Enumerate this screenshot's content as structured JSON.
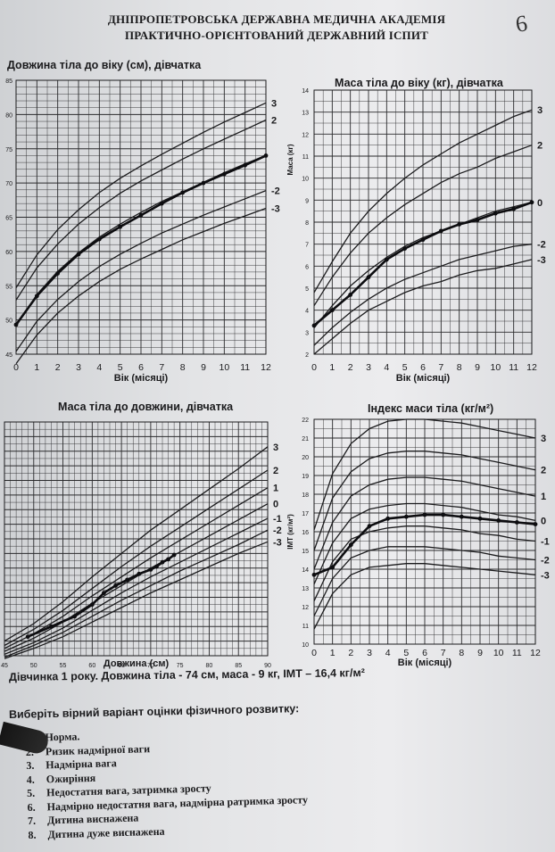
{
  "page": {
    "number": "6",
    "header_line1": "ДНІПРОПЕТРОВСЬКА ДЕРЖАВНА МЕДИЧНА АКАДЕМІЯ",
    "header_line2": "ПРАКТИЧНО-ОРІЄНТОВАНИЙ ДЕРЖАВНИЙ ІСПИТ"
  },
  "colors": {
    "paper": "#e6e7e9",
    "ink": "#1b1b1d",
    "grid": "#2a2a2c"
  },
  "chart_data": [
    {
      "type": "line",
      "title": "Довжина тіла до віку (см),  дівчатка",
      "xlabel": "Вік (місяці)",
      "ylabel": "",
      "x": [
        0,
        1,
        2,
        3,
        4,
        5,
        6,
        7,
        8,
        9,
        10,
        11,
        12
      ],
      "xlim": [
        0,
        12
      ],
      "ylim": [
        45,
        85
      ],
      "y_ticks": [
        45,
        50,
        55,
        60,
        65,
        70,
        75,
        80,
        85
      ],
      "grid": true,
      "series": [
        {
          "name": "3",
          "values": [
            54.7,
            59.5,
            63.2,
            66.1,
            68.6,
            70.7,
            72.5,
            74.2,
            75.8,
            77.4,
            78.9,
            80.3,
            81.7
          ]
        },
        {
          "name": "2",
          "values": [
            52.9,
            57.6,
            61.1,
            64.0,
            66.4,
            68.5,
            70.3,
            71.9,
            73.5,
            75.0,
            76.4,
            77.8,
            79.2
          ]
        },
        {
          "name": "",
          "values": [
            49.1,
            53.7,
            57.1,
            59.8,
            62.1,
            64.0,
            65.7,
            67.3,
            68.7,
            70.1,
            71.5,
            72.8,
            74.0
          ]
        },
        {
          "name": "-2",
          "values": [
            45.4,
            49.8,
            53.0,
            55.6,
            57.8,
            59.6,
            61.2,
            62.7,
            64.0,
            65.3,
            66.5,
            67.7,
            68.9
          ]
        },
        {
          "name": "-3",
          "values": [
            43.6,
            47.8,
            51.0,
            53.5,
            55.6,
            57.4,
            58.9,
            60.3,
            61.7,
            62.9,
            64.1,
            65.2,
            66.3
          ]
        }
      ],
      "patient": {
        "x": [
          0,
          1,
          2,
          3,
          4,
          5,
          6,
          7,
          8,
          9,
          10,
          11,
          12
        ],
        "y": [
          49.3,
          53.5,
          56.8,
          59.6,
          61.8,
          63.6,
          65.3,
          67.0,
          68.6,
          70.0,
          71.3,
          72.6,
          74.0
        ]
      }
    },
    {
      "type": "line",
      "title": "Маса тіла до віку (кг), дівчатка",
      "xlabel": "Вік (місяці)",
      "ylabel": "Маса (кг)",
      "x": [
        0,
        1,
        2,
        3,
        4,
        5,
        6,
        7,
        8,
        9,
        10,
        11,
        12
      ],
      "xlim": [
        0,
        12
      ],
      "ylim": [
        2,
        14
      ],
      "y_ticks": [
        2,
        3,
        4,
        5,
        6,
        7,
        8,
        9,
        10,
        11,
        12,
        13,
        14
      ],
      "grid": true,
      "series": [
        {
          "name": "3",
          "values": [
            4.8,
            6.2,
            7.5,
            8.5,
            9.3,
            10.0,
            10.6,
            11.1,
            11.6,
            12.0,
            12.4,
            12.8,
            13.1
          ]
        },
        {
          "name": "2",
          "values": [
            4.2,
            5.5,
            6.6,
            7.5,
            8.2,
            8.8,
            9.3,
            9.8,
            10.2,
            10.5,
            10.9,
            11.2,
            11.5
          ]
        },
        {
          "name": "0",
          "values": [
            3.2,
            4.2,
            5.1,
            5.8,
            6.4,
            6.9,
            7.3,
            7.6,
            7.9,
            8.2,
            8.5,
            8.7,
            8.9
          ]
        },
        {
          "name": "-2",
          "values": [
            2.4,
            3.2,
            3.9,
            4.5,
            5.0,
            5.4,
            5.7,
            6.0,
            6.3,
            6.5,
            6.7,
            6.9,
            7.0
          ]
        },
        {
          "name": "-3",
          "values": [
            2.0,
            2.7,
            3.4,
            4.0,
            4.4,
            4.8,
            5.1,
            5.3,
            5.6,
            5.8,
            5.9,
            6.1,
            6.3
          ]
        }
      ],
      "patient": {
        "x": [
          0,
          1,
          2,
          3,
          4,
          5,
          6,
          7,
          8,
          9,
          10,
          11,
          12
        ],
        "y": [
          3.3,
          4.0,
          4.7,
          5.5,
          6.3,
          6.8,
          7.2,
          7.6,
          7.9,
          8.1,
          8.4,
          8.6,
          8.9
        ]
      }
    },
    {
      "type": "line",
      "title": "Маса тіла до довжини, дівчатка",
      "xlabel": "Довжина (см)",
      "ylabel": "",
      "x": [
        45,
        50,
        55,
        60,
        65,
        70,
        75,
        80,
        85,
        90
      ],
      "x_ticks": [
        45,
        50,
        55,
        60,
        65,
        70,
        75,
        80,
        85,
        90
      ],
      "xlim": [
        45,
        90
      ],
      "ylim": [
        2,
        18
      ],
      "grid": true,
      "series": [
        {
          "name": "3",
          "values": [
            3.0,
            4.2,
            5.7,
            7.4,
            9.0,
            10.6,
            12.0,
            13.4,
            14.8,
            16.3
          ]
        },
        {
          "name": "2",
          "values": [
            2.7,
            3.8,
            5.1,
            6.6,
            8.1,
            9.5,
            10.8,
            12.1,
            13.4,
            14.7
          ]
        },
        {
          "name": "1",
          "values": [
            2.5,
            3.5,
            4.7,
            6.1,
            7.4,
            8.7,
            9.9,
            11.1,
            12.3,
            13.5
          ]
        },
        {
          "name": "0",
          "values": [
            2.3,
            3.2,
            4.3,
            5.6,
            6.8,
            8.0,
            9.1,
            10.2,
            11.3,
            12.4
          ]
        },
        {
          "name": "-1",
          "values": [
            2.1,
            2.9,
            3.9,
            5.1,
            6.3,
            7.4,
            8.4,
            9.4,
            10.4,
            11.4
          ]
        },
        {
          "name": "-2",
          "values": [
            1.9,
            2.7,
            3.6,
            4.7,
            5.8,
            6.8,
            7.8,
            8.7,
            9.6,
            10.6
          ]
        },
        {
          "name": "-3",
          "values": [
            1.8,
            2.5,
            3.3,
            4.3,
            5.3,
            6.3,
            7.2,
            8.1,
            9.0,
            9.8
          ]
        }
      ],
      "patient": {
        "x": [
          49,
          53,
          57,
          60,
          62,
          64,
          66,
          68,
          70,
          71,
          72,
          73,
          74
        ],
        "y": [
          3.3,
          4.0,
          4.7,
          5.5,
          6.3,
          6.8,
          7.2,
          7.6,
          7.9,
          8.1,
          8.4,
          8.6,
          8.9
        ]
      }
    },
    {
      "type": "line",
      "title": "Індекс маси тіла (кг/м²)",
      "xlabel": "Вік (місяці)",
      "ylabel": "ІМТ (кг/м²)",
      "x": [
        0,
        1,
        2,
        3,
        4,
        5,
        6,
        7,
        8,
        9,
        10,
        11,
        12
      ],
      "xlim": [
        0,
        12
      ],
      "ylim": [
        10,
        22
      ],
      "y_ticks": [
        10,
        11,
        12,
        13,
        14,
        15,
        16,
        17,
        18,
        19,
        20,
        21,
        22
      ],
      "grid": true,
      "series": [
        {
          "name": "3",
          "values": [
            16.1,
            19.1,
            20.7,
            21.5,
            21.9,
            22.0,
            22.0,
            21.9,
            21.8,
            21.6,
            21.4,
            21.2,
            21.0
          ]
        },
        {
          "name": "2",
          "values": [
            15.0,
            17.8,
            19.2,
            19.9,
            20.2,
            20.3,
            20.3,
            20.2,
            20.1,
            19.9,
            19.7,
            19.5,
            19.3
          ]
        },
        {
          "name": "1",
          "values": [
            14.0,
            16.5,
            17.9,
            18.5,
            18.8,
            18.9,
            18.9,
            18.8,
            18.7,
            18.5,
            18.3,
            18.1,
            17.9
          ]
        },
        {
          "name": "0",
          "values": [
            13.2,
            15.4,
            16.7,
            17.2,
            17.4,
            17.5,
            17.5,
            17.4,
            17.3,
            17.1,
            16.9,
            16.8,
            16.6
          ]
        },
        {
          "name": "-1",
          "values": [
            12.3,
            14.4,
            15.6,
            16.0,
            16.2,
            16.3,
            16.3,
            16.2,
            16.1,
            15.9,
            15.8,
            15.6,
            15.5
          ]
        },
        {
          "name": "-2",
          "values": [
            11.5,
            13.5,
            14.6,
            15.0,
            15.2,
            15.2,
            15.2,
            15.1,
            15.0,
            14.9,
            14.7,
            14.6,
            14.5
          ]
        },
        {
          "name": "-3",
          "values": [
            10.8,
            12.7,
            13.7,
            14.1,
            14.2,
            14.3,
            14.3,
            14.2,
            14.1,
            14.0,
            13.9,
            13.8,
            13.7
          ]
        }
      ],
      "patient": {
        "x": [
          0,
          1,
          2,
          3,
          4,
          5,
          6,
          7,
          8,
          9,
          10,
          11,
          12
        ],
        "y": [
          13.7,
          14.1,
          15.3,
          16.3,
          16.7,
          16.8,
          16.9,
          16.9,
          16.8,
          16.7,
          16.6,
          16.5,
          16.4
        ]
      }
    }
  ],
  "case_text": "Дівчинка 1 року. Довжина тіла - 74 см, маса - 9 кг, ІМТ – 16,4 кг/м²",
  "question": "Виберіть вірний варіант оцінки фізичного розвитку:",
  "options": [
    {
      "num": "1.",
      "label": "Норма."
    },
    {
      "num": "2.",
      "label": "Ризик надмірної ваги"
    },
    {
      "num": "3.",
      "label": "Надмірна вага"
    },
    {
      "num": "4.",
      "label": "Ожиріння"
    },
    {
      "num": "5.",
      "label": "Недостатня вага, затримка зросту"
    },
    {
      "num": "6.",
      "label": "Надмірно недостатня вага, надмірна ратримка зросту"
    },
    {
      "num": "7.",
      "label": "Дитина виснажена"
    },
    {
      "num": "8.",
      "label": "Дитина дуже виснажена"
    }
  ]
}
